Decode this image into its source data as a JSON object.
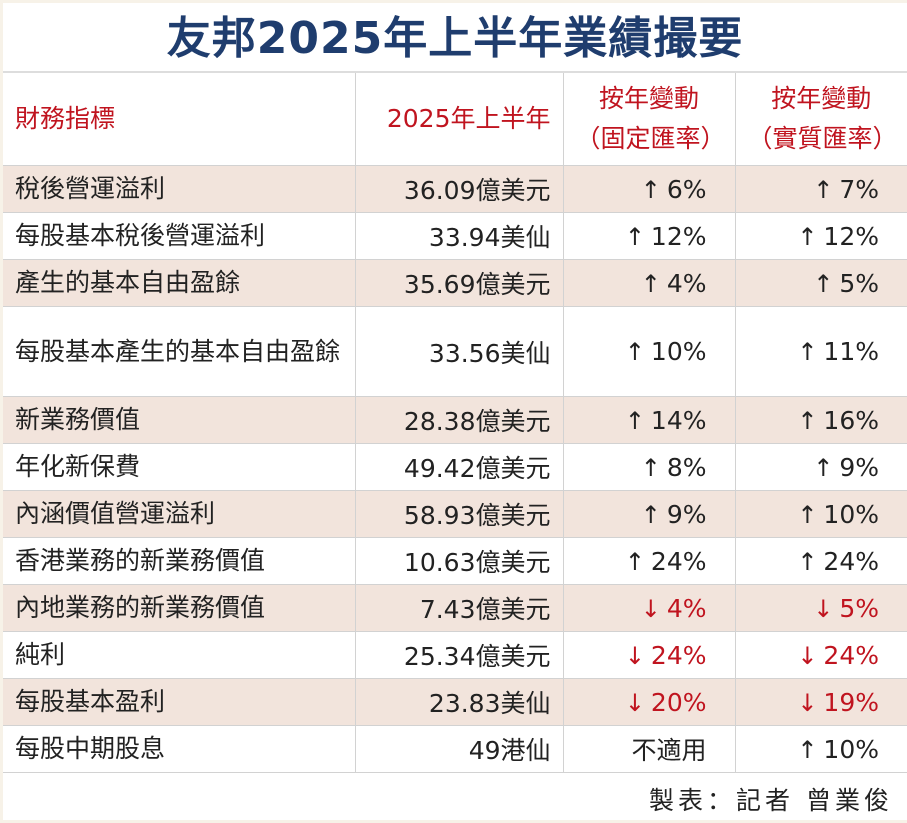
{
  "title": "友邦2025年上半年業績撮要",
  "headers": [
    "財務指標",
    "2025年上半年",
    "按年變動（固定匯率）",
    "按年變動（實質匯率）"
  ],
  "colors": {
    "title": "#1f3d6e",
    "header": "#c0141f",
    "decrease": "#c0141f",
    "row_shade": "#f2e4dc"
  },
  "rows": [
    {
      "name": "稅後營運溢利",
      "value": "36.09億美元",
      "cer": "6%",
      "cer_dir": "up",
      "aer": "7%",
      "aer_dir": "up"
    },
    {
      "name": "每股基本稅後營運溢利",
      "value": "33.94美仙",
      "cer": "12%",
      "cer_dir": "up",
      "aer": "12%",
      "aer_dir": "up"
    },
    {
      "name": "產生的基本自由盈餘",
      "value": "35.69億美元",
      "cer": "4%",
      "cer_dir": "up",
      "aer": "5%",
      "aer_dir": "up"
    },
    {
      "name": "每股基本產生的基本自由盈餘",
      "value": "33.56美仙",
      "cer": "10%",
      "cer_dir": "up",
      "aer": "11%",
      "aer_dir": "up"
    },
    {
      "name": "新業務價值",
      "value": "28.38億美元",
      "cer": "14%",
      "cer_dir": "up",
      "aer": "16%",
      "aer_dir": "up"
    },
    {
      "name": "年化新保費",
      "value": "49.42億美元",
      "cer": "8%",
      "cer_dir": "up",
      "aer": "9%",
      "aer_dir": "up"
    },
    {
      "name": "內涵價值營運溢利",
      "value": "58.93億美元",
      "cer": "9%",
      "cer_dir": "up",
      "aer": "10%",
      "aer_dir": "up"
    },
    {
      "name": "香港業務的新業務價值",
      "value": "10.63億美元",
      "cer": "24%",
      "cer_dir": "up",
      "aer": "24%",
      "aer_dir": "up"
    },
    {
      "name": "內地業務的新業務價值",
      "value": "7.43億美元",
      "cer": "4%",
      "cer_dir": "down",
      "aer": "5%",
      "aer_dir": "down"
    },
    {
      "name": "純利",
      "value": "25.34億美元",
      "cer": "24%",
      "cer_dir": "down",
      "aer": "24%",
      "aer_dir": "down"
    },
    {
      "name": "每股基本盈利",
      "value": "23.83美仙",
      "cer": "20%",
      "cer_dir": "down",
      "aer": "19%",
      "aer_dir": "down"
    },
    {
      "name": "每股中期股息",
      "value": "49港仙",
      "cer": "不適用",
      "cer_dir": "none",
      "aer": "10%",
      "aer_dir": "up"
    }
  ],
  "footer": "製表：記者 曾業俊"
}
